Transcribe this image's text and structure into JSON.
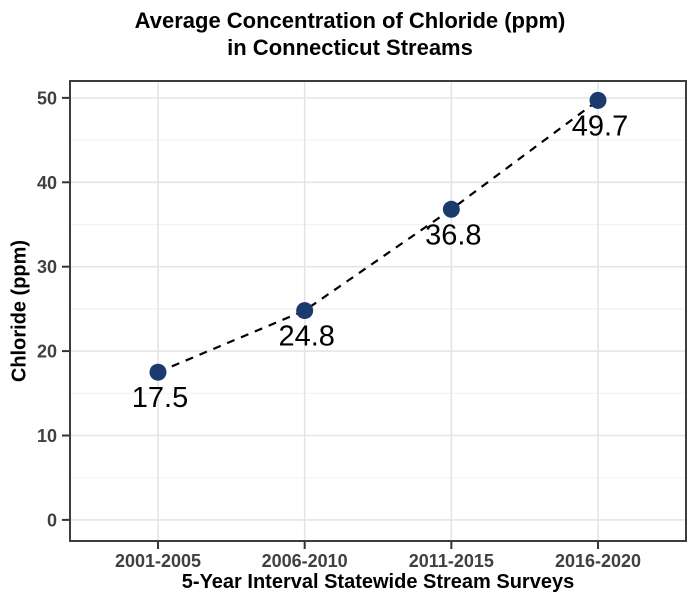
{
  "figure": {
    "title_line1": "Average Concentration of Chloride (ppm)",
    "title_line2": "in Connecticut Streams"
  },
  "chart_data": {
    "type": "line",
    "title": "Average Concentration of Chloride (ppm) in Connecticut Streams",
    "categories": [
      "2001-2005",
      "2006-2010",
      "2011-2015",
      "2016-2020"
    ],
    "values": [
      17.5,
      24.8,
      36.8,
      49.7
    ],
    "point_labels": [
      "17.5",
      "24.8",
      "36.8",
      "49.7"
    ],
    "xlabel": "5-Year Interval Statewide Stream Surveys",
    "ylabel": "Chloride (ppm)",
    "yticks": [
      0,
      10,
      20,
      30,
      40,
      50
    ],
    "yticks_minor": [
      5,
      15,
      25,
      35,
      45
    ],
    "ylim": [
      -2.5,
      52
    ],
    "line_style": "dashed",
    "grid": true,
    "legend": false
  },
  "style": {
    "point_color": "#1b3a6e",
    "line_color": "#000000",
    "grid_major_color": "#e5e5e5",
    "grid_minor_color": "#f2f2f2",
    "panel_border_color": "#3d3d3d",
    "tick_mark_color": "#333333",
    "axis_text_color": "#404040",
    "value_label_color": "#000000",
    "background_color": "#ffffff"
  }
}
